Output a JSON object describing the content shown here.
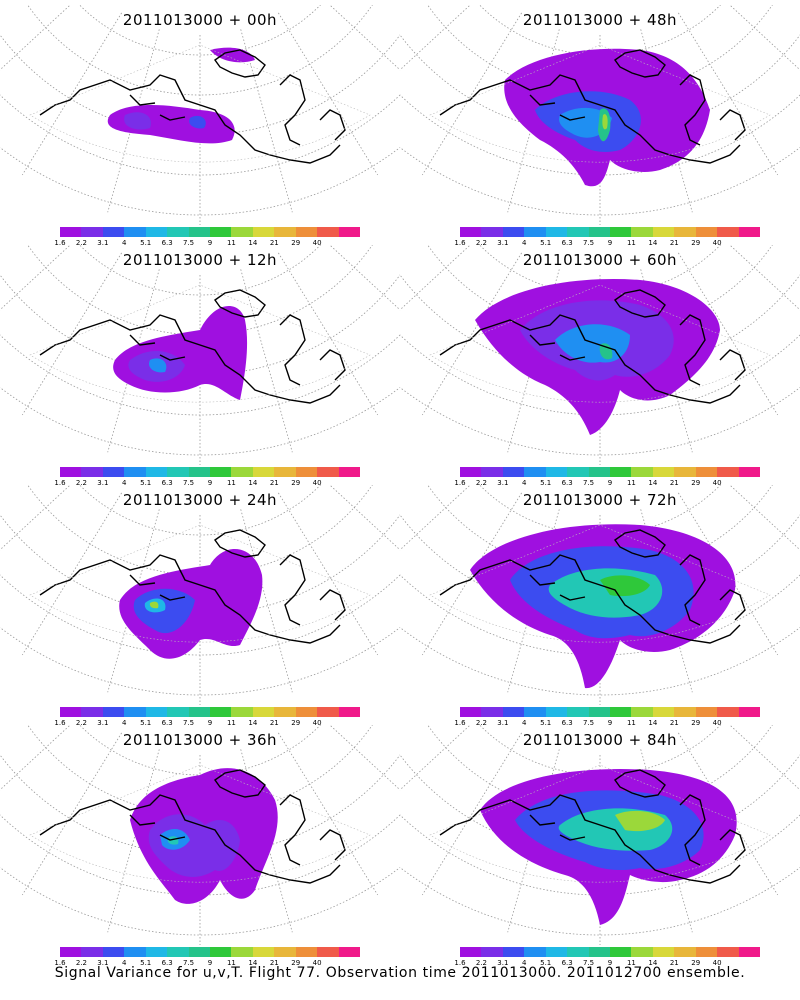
{
  "footer": "Signal Variance for u,v,T. Flight 77. Observation time 2011013000. 2011012700 ensemble.",
  "colorbar": {
    "labels": [
      "1.6",
      "2.2",
      "3.1",
      "4",
      "5.1",
      "6.3",
      "7.5",
      "9",
      "11",
      "14",
      "21",
      "29",
      "40"
    ],
    "colors": [
      "#9f10e0",
      "#7a2ee8",
      "#3c4cf0",
      "#1f8ff2",
      "#1fb8e6",
      "#22c7b5",
      "#25c38a",
      "#2fc83a",
      "#9bd83a",
      "#d8d83a",
      "#e8b63a",
      "#ee8f3a",
      "#f05a4a",
      "#f01a8a"
    ]
  },
  "chart_data": [
    {
      "type": "heatmap",
      "title": "2011013000 + 00h",
      "lead_hours": 0,
      "colorbar_labels": [
        "1.6",
        "2.2",
        "3.1",
        "4",
        "5.1",
        "6.3",
        "7.5",
        "9",
        "11",
        "14",
        "21",
        "29",
        "40"
      ]
    },
    {
      "type": "heatmap",
      "title": "2011013000 + 48h",
      "lead_hours": 48,
      "colorbar_labels": [
        "1.6",
        "2.2",
        "3.1",
        "4",
        "5.1",
        "6.3",
        "7.5",
        "9",
        "11",
        "14",
        "21",
        "29",
        "40"
      ]
    },
    {
      "type": "heatmap",
      "title": "2011013000 + 12h",
      "lead_hours": 12,
      "colorbar_labels": [
        "1.6",
        "2.2",
        "3.1",
        "4",
        "5.1",
        "6.3",
        "7.5",
        "9",
        "11",
        "14",
        "21",
        "29",
        "40"
      ]
    },
    {
      "type": "heatmap",
      "title": "2011013000 + 60h",
      "lead_hours": 60,
      "colorbar_labels": [
        "1.6",
        "2.2",
        "3.1",
        "4",
        "5.1",
        "6.3",
        "7.5",
        "9",
        "11",
        "14",
        "21",
        "29",
        "40"
      ]
    },
    {
      "type": "heatmap",
      "title": "2011013000 + 24h",
      "lead_hours": 24,
      "colorbar_labels": [
        "1.6",
        "2.2",
        "3.1",
        "4",
        "5.1",
        "6.3",
        "7.5",
        "9",
        "11",
        "14",
        "21",
        "29",
        "40"
      ]
    },
    {
      "type": "heatmap",
      "title": "2011013000 + 72h",
      "lead_hours": 72,
      "colorbar_labels": [
        "1.6",
        "2.2",
        "3.1",
        "4",
        "5.1",
        "6.3",
        "7.5",
        "9",
        "11",
        "14",
        "21",
        "29",
        "40"
      ]
    },
    {
      "type": "heatmap",
      "title": "2011013000 + 36h",
      "lead_hours": 36,
      "colorbar_labels": [
        "1.6",
        "2.2",
        "3.1",
        "4",
        "5.1",
        "6.3",
        "7.5",
        "9",
        "11",
        "14",
        "21",
        "29",
        "40"
      ]
    },
    {
      "type": "heatmap",
      "title": "2011013000 + 84h",
      "lead_hours": 84,
      "colorbar_labels": [
        "1.6",
        "2.2",
        "3.1",
        "4",
        "5.1",
        "6.3",
        "7.5",
        "9",
        "11",
        "14",
        "21",
        "29",
        "40"
      ]
    }
  ]
}
